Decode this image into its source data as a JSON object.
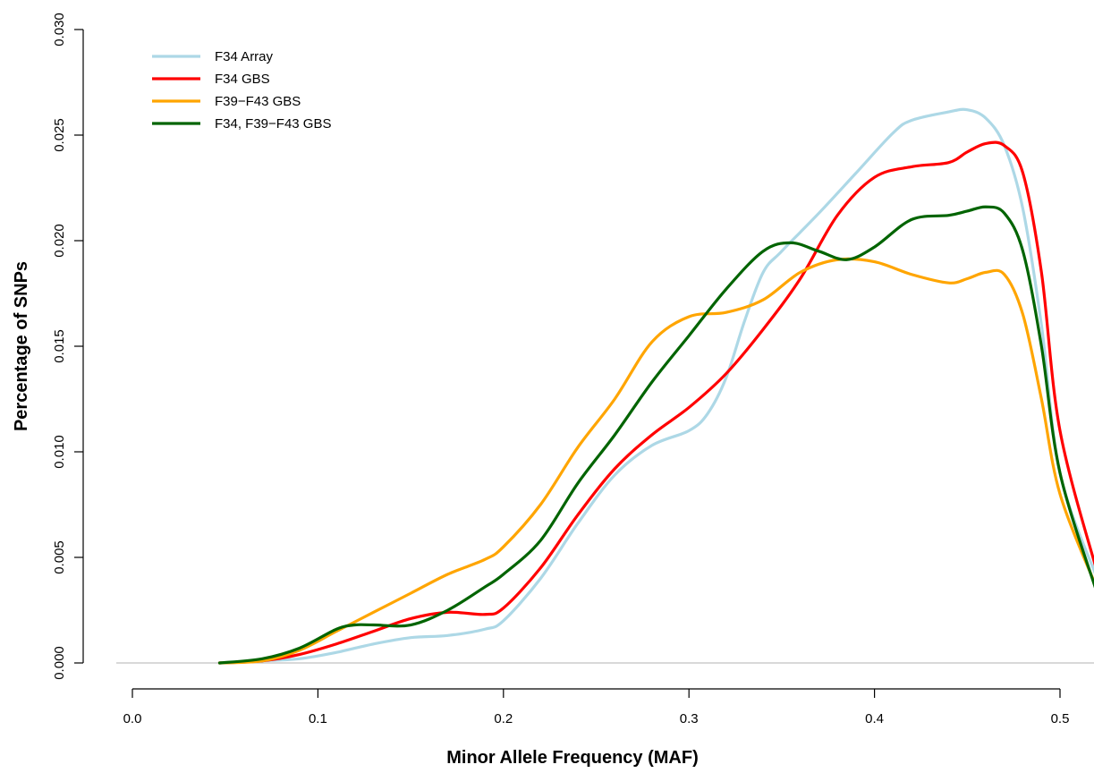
{
  "chart_data": {
    "type": "line",
    "title": "",
    "xlabel": "Minor Allele Frequency (MAF)",
    "ylabel": "Percentage of SNPs",
    "xlim": [
      0.0,
      0.52
    ],
    "ylim": [
      0.0,
      0.03
    ],
    "x_ticks": [
      0.0,
      0.1,
      0.2,
      0.3,
      0.4,
      0.5
    ],
    "x_tick_labels": [
      "0.0",
      "0.1",
      "0.2",
      "0.3",
      "0.4",
      "0.5"
    ],
    "y_ticks": [
      0.0,
      0.005,
      0.01,
      0.015,
      0.02,
      0.025,
      0.03
    ],
    "y_tick_labels": [
      "0.000",
      "0.005",
      "0.010",
      "0.015",
      "0.020",
      "0.025",
      "0.030"
    ],
    "grid": false,
    "legend_position": "top-left",
    "series": [
      {
        "name": "F34 Array",
        "color": "#add8e6",
        "x": [
          0.047,
          0.07,
          0.09,
          0.11,
          0.13,
          0.15,
          0.17,
          0.19,
          0.2,
          0.22,
          0.24,
          0.26,
          0.28,
          0.3,
          0.31,
          0.32,
          0.33,
          0.34,
          0.35,
          0.37,
          0.39,
          0.41,
          0.42,
          0.44,
          0.45,
          0.46,
          0.47,
          0.48,
          0.49,
          0.5,
          0.52
        ],
        "y": [
          0.0,
          0.0001,
          0.0002,
          0.0005,
          0.0009,
          0.0012,
          0.0013,
          0.0016,
          0.002,
          0.004,
          0.0066,
          0.0089,
          0.0103,
          0.011,
          0.0118,
          0.0135,
          0.0162,
          0.0185,
          0.0195,
          0.0213,
          0.0232,
          0.0251,
          0.0257,
          0.0261,
          0.0262,
          0.0258,
          0.0245,
          0.0215,
          0.016,
          0.009,
          0.004
        ]
      },
      {
        "name": "F34 GBS",
        "color": "#ff0000",
        "x": [
          0.047,
          0.07,
          0.09,
          0.11,
          0.13,
          0.15,
          0.17,
          0.19,
          0.2,
          0.22,
          0.24,
          0.26,
          0.28,
          0.3,
          0.32,
          0.34,
          0.36,
          0.38,
          0.4,
          0.42,
          0.44,
          0.45,
          0.46,
          0.47,
          0.48,
          0.49,
          0.5,
          0.52
        ],
        "y": [
          0.0,
          0.0001,
          0.0004,
          0.0009,
          0.0015,
          0.0021,
          0.0024,
          0.0023,
          0.0026,
          0.0045,
          0.007,
          0.0092,
          0.0108,
          0.0121,
          0.0137,
          0.0158,
          0.0182,
          0.0212,
          0.023,
          0.0235,
          0.0237,
          0.0242,
          0.0246,
          0.0245,
          0.0232,
          0.0185,
          0.011,
          0.0043
        ]
      },
      {
        "name": "F39−F43 GBS",
        "color": "#ffa500",
        "x": [
          0.047,
          0.07,
          0.09,
          0.11,
          0.13,
          0.15,
          0.17,
          0.19,
          0.2,
          0.22,
          0.24,
          0.26,
          0.28,
          0.3,
          0.32,
          0.34,
          0.36,
          0.38,
          0.4,
          0.42,
          0.44,
          0.45,
          0.46,
          0.47,
          0.48,
          0.49,
          0.5,
          0.52
        ],
        "y": [
          0.0,
          0.0001,
          0.0006,
          0.0015,
          0.0024,
          0.0033,
          0.0042,
          0.0049,
          0.0055,
          0.0075,
          0.0102,
          0.0125,
          0.0152,
          0.0164,
          0.0166,
          0.0172,
          0.0185,
          0.0191,
          0.019,
          0.0184,
          0.018,
          0.0182,
          0.0185,
          0.0184,
          0.0165,
          0.0125,
          0.008,
          0.0035
        ]
      },
      {
        "name": "F34, F39−F43 GBS",
        "color": "#006400",
        "x": [
          0.047,
          0.07,
          0.09,
          0.11,
          0.12,
          0.13,
          0.15,
          0.17,
          0.19,
          0.2,
          0.22,
          0.24,
          0.26,
          0.28,
          0.3,
          0.32,
          0.34,
          0.355,
          0.37,
          0.385,
          0.4,
          0.42,
          0.44,
          0.45,
          0.46,
          0.47,
          0.48,
          0.49,
          0.5,
          0.52
        ],
        "y": [
          0.0,
          0.0002,
          0.0007,
          0.0016,
          0.0018,
          0.0018,
          0.0018,
          0.0025,
          0.0036,
          0.0042,
          0.0058,
          0.0085,
          0.0108,
          0.0133,
          0.0155,
          0.0177,
          0.0195,
          0.0199,
          0.0195,
          0.0191,
          0.0197,
          0.021,
          0.0212,
          0.0214,
          0.0216,
          0.0213,
          0.0195,
          0.015,
          0.009,
          0.0033
        ]
      }
    ]
  }
}
